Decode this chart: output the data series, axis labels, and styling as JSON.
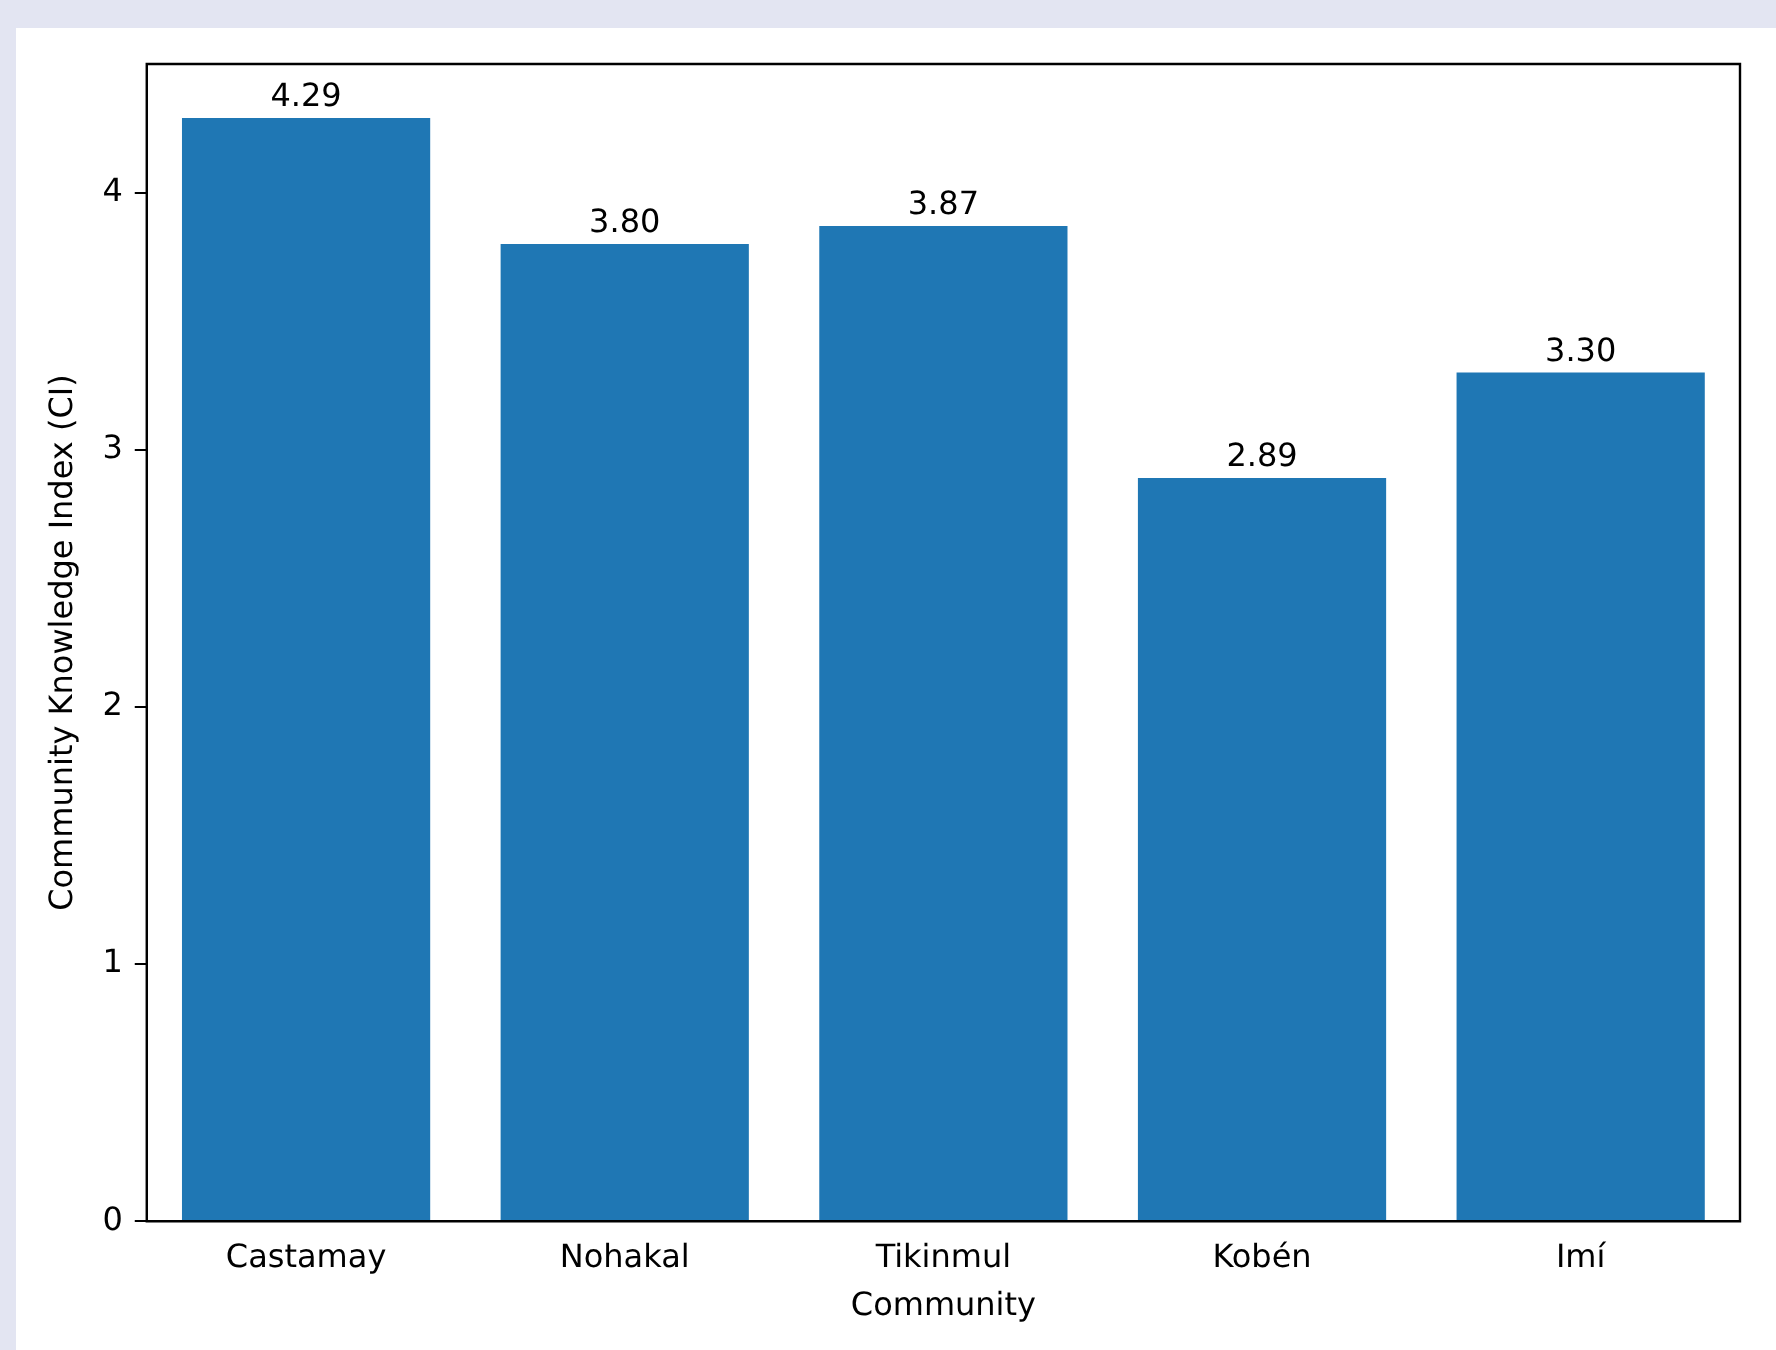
{
  "chart_data": {
    "type": "bar",
    "xlabel": "Community",
    "ylabel": "Community Knowledge Index (CI)",
    "categories": [
      "Castamay",
      "Nohakal",
      "Tikinmul",
      "Kobén",
      "Imí"
    ],
    "values": [
      4.29,
      3.8,
      3.87,
      2.89,
      3.3
    ],
    "value_labels": [
      "4.29",
      "3.80",
      "3.87",
      "2.89",
      "3.30"
    ],
    "color": "#1f77b4",
    "ylim": [
      0,
      4.5
    ],
    "yticks": [
      0,
      1,
      2,
      3,
      4
    ],
    "grid": false,
    "legend": false
  }
}
